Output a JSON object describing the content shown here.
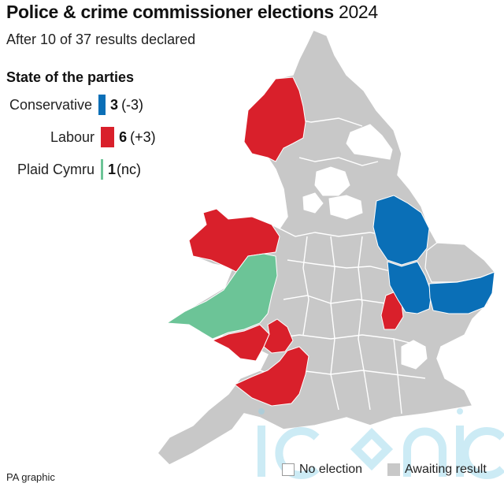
{
  "header": {
    "title": "Police & crime commissioner elections",
    "title_year": "2024",
    "subtitle": "After 10 of 37 results declared"
  },
  "legend": {
    "title": "State of the parties",
    "parties": [
      {
        "name": "Conservative",
        "seats": "3",
        "change": "(-3)",
        "color": "#0a6fb7"
      },
      {
        "name": "Labour",
        "seats": "6",
        "change": "(+3)",
        "color": "#d9202b"
      },
      {
        "name": "Plaid Cymru",
        "seats": "1",
        "change": "(nc)",
        "color": "#6cc497"
      }
    ]
  },
  "map": {
    "region": "England and Wales",
    "colors": {
      "awaiting": "#c8c8c8",
      "no_election": "#ffffff",
      "border": "#ffffff",
      "conservative": "#0a6fb7",
      "labour": "#d9202b",
      "plaid": "#6cc497"
    }
  },
  "key": {
    "no_election": "No election",
    "awaiting": "Awaiting result"
  },
  "footer": {
    "credit": "PA graphic"
  },
  "watermark_icon": "iconic-watermark"
}
